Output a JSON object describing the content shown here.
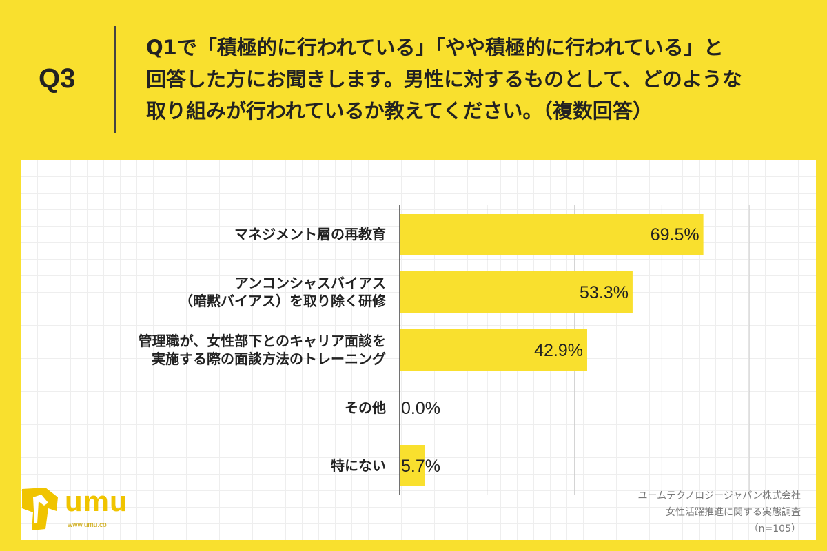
{
  "question": {
    "label": "Q3",
    "lines": [
      "Q1で「積極的に行われている」「やや積極的に行われている」と",
      "回答した方にお聞きします。男性に対するものとして、どのような",
      "取り組みが行われているか教えてください。（複数回答）"
    ]
  },
  "chart_data": {
    "type": "bar",
    "orientation": "horizontal",
    "categories": [
      [
        "マネジメント層の再教育"
      ],
      [
        "アンコンシャスバイアス",
        "（暗黙バイアス）を取り除く研修"
      ],
      [
        "管理職が、女性部下とのキャリア面談を",
        "実施する際の面談方法のトレーニング"
      ],
      [
        "その他"
      ],
      [
        "特にない"
      ]
    ],
    "values": [
      69.5,
      53.3,
      42.9,
      0.0,
      5.7
    ],
    "value_labels": [
      "69.5%",
      "53.3%",
      "42.9%",
      "0.0%",
      "5.7%"
    ],
    "xlim": [
      0,
      100
    ],
    "grid": true,
    "bar_color": "#f9e02e"
  },
  "source": {
    "company": "ユームテクノロジージャパン株式会社",
    "survey": "女性活躍推進に関する実態調査",
    "n": "（n=105）"
  },
  "logo": {
    "text": "umu",
    "url": "www.umu.co"
  }
}
